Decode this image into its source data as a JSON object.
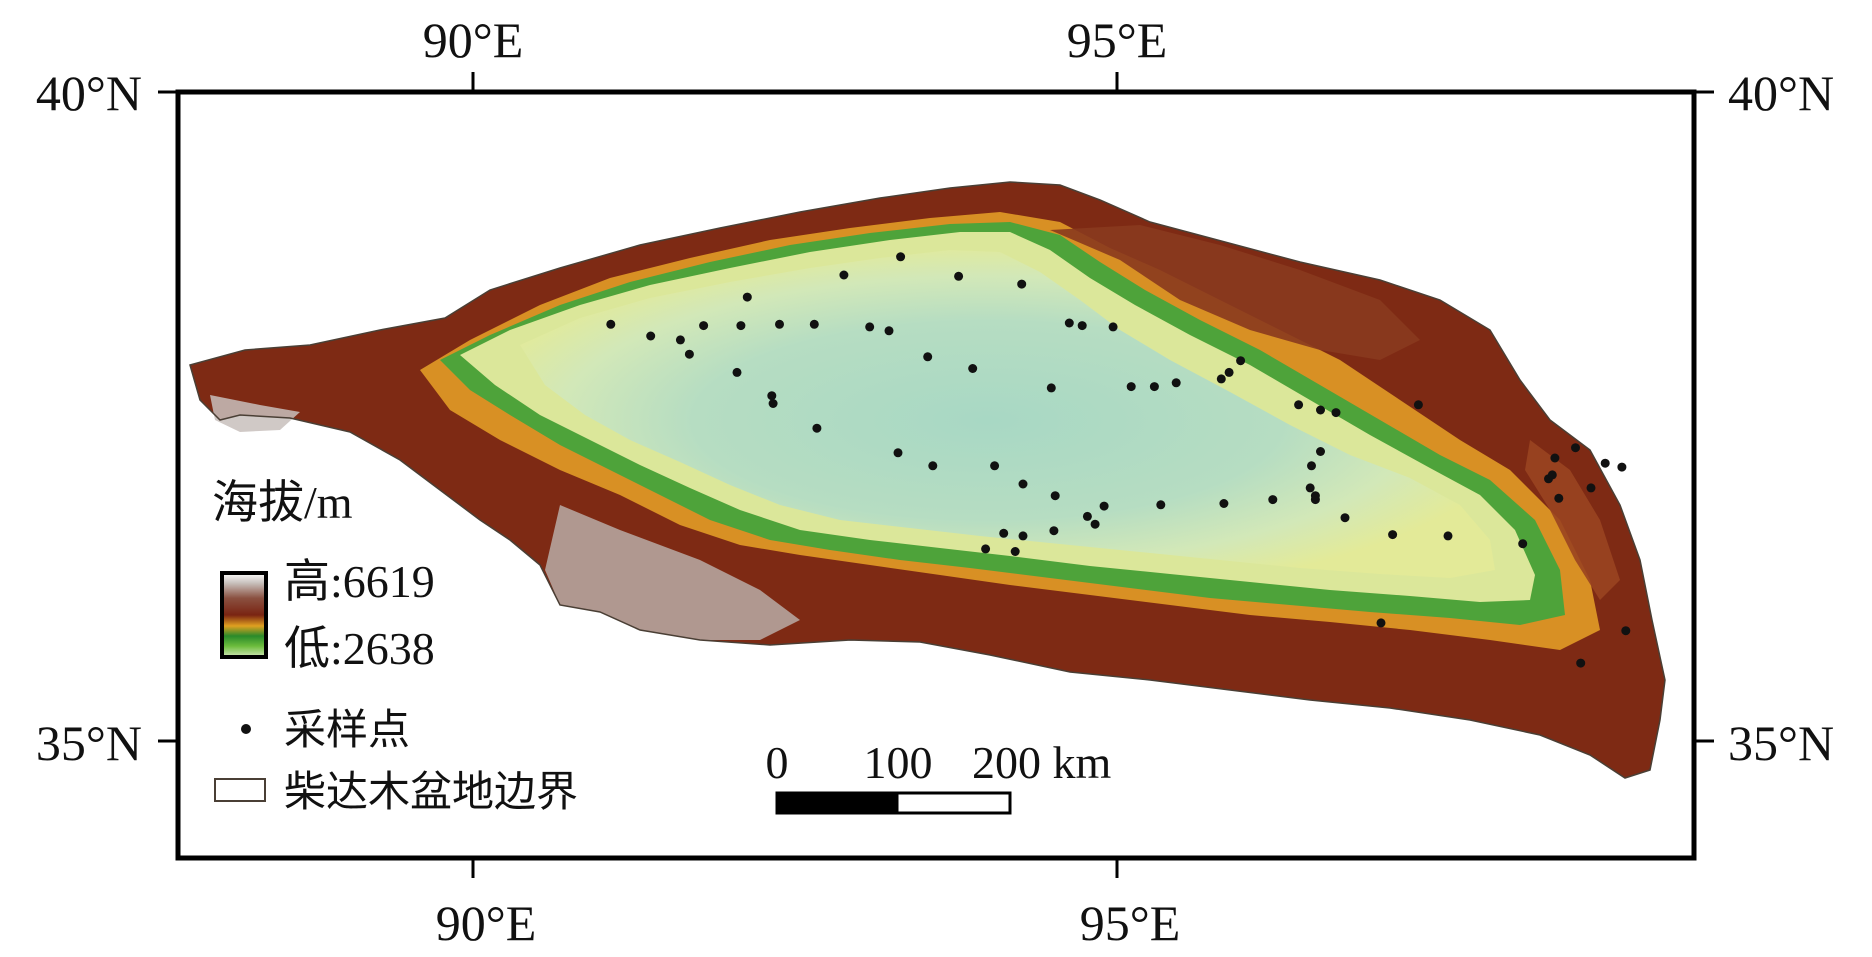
{
  "map": {
    "lon_labels": {
      "a": "90°E",
      "b": "95°E"
    },
    "lat_labels": {
      "a": "40°N",
      "b": "35°N"
    },
    "colors": {
      "frame": "#000000",
      "boundary": "#4a3f35",
      "sample_point": "#111111"
    },
    "elevation_ramp": [
      "#a8d8c4",
      "#d2e8b8",
      "#e7ea8a",
      "#6cbc3c",
      "#2a8a2a",
      "#e0a020",
      "#b4581a",
      "#7a2412",
      "#8a5040",
      "#c8c0bc",
      "#ffffff"
    ]
  },
  "legend": {
    "elevation_title": "海拔/m",
    "high_label": "高:6619",
    "low_label": "低:2638",
    "sample_label": "采样点",
    "boundary_label": "柴达木盆地边界"
  },
  "scale_bar": {
    "labels": {
      "zero": "0",
      "mid": "100",
      "end": "200 km"
    },
    "segments": [
      "black",
      "white"
    ]
  },
  "sample_points_lonlat": [
    [
      91.07,
      38.21
    ],
    [
      91.38,
      38.12
    ],
    [
      91.61,
      38.09
    ],
    [
      91.68,
      37.98
    ],
    [
      91.79,
      38.2
    ],
    [
      92.08,
      38.2
    ],
    [
      92.13,
      38.42
    ],
    [
      92.05,
      37.84
    ],
    [
      92.32,
      37.66
    ],
    [
      92.33,
      37.6
    ],
    [
      92.38,
      38.21
    ],
    [
      92.65,
      38.21
    ],
    [
      92.67,
      37.41
    ],
    [
      92.88,
      38.59
    ],
    [
      93.08,
      38.19
    ],
    [
      93.23,
      38.16
    ],
    [
      93.32,
      38.73
    ],
    [
      93.53,
      37.96
    ],
    [
      93.77,
      38.58
    ],
    [
      93.88,
      37.87
    ],
    [
      94.26,
      38.52
    ],
    [
      94.49,
      37.72
    ],
    [
      94.63,
      38.22
    ],
    [
      94.73,
      38.2
    ],
    [
      94.97,
      38.19
    ],
    [
      95.11,
      37.73
    ],
    [
      95.29,
      37.73
    ],
    [
      95.46,
      37.76
    ],
    [
      95.81,
      37.79
    ],
    [
      95.87,
      37.84
    ],
    [
      95.96,
      37.93
    ],
    [
      96.41,
      37.59
    ],
    [
      96.58,
      37.55
    ],
    [
      96.7,
      37.53
    ],
    [
      97.34,
      37.59
    ],
    [
      93.3,
      37.22
    ],
    [
      93.57,
      37.12
    ],
    [
      94.05,
      37.12
    ],
    [
      94.27,
      36.98
    ],
    [
      94.52,
      36.89
    ],
    [
      94.9,
      36.81
    ],
    [
      95.34,
      36.82
    ],
    [
      95.83,
      36.83
    ],
    [
      96.21,
      36.86
    ],
    [
      96.54,
      36.86
    ],
    [
      96.77,
      36.72
    ],
    [
      97.14,
      36.59
    ],
    [
      97.57,
      36.58
    ],
    [
      98.15,
      36.52
    ],
    [
      98.43,
      36.87
    ],
    [
      98.68,
      36.95
    ],
    [
      98.79,
      37.14
    ],
    [
      98.4,
      37.18
    ],
    [
      98.35,
      37.02
    ],
    [
      98.38,
      37.05
    ],
    [
      98.56,
      37.26
    ],
    [
      98.92,
      37.11
    ],
    [
      96.58,
      37.23
    ],
    [
      96.51,
      37.12
    ],
    [
      96.5,
      36.95
    ],
    [
      96.54,
      36.89
    ],
    [
      94.12,
      36.6
    ],
    [
      94.27,
      36.58
    ],
    [
      94.51,
      36.62
    ],
    [
      94.83,
      36.67
    ],
    [
      94.77,
      36.73
    ],
    [
      93.98,
      36.48
    ],
    [
      94.21,
      36.46
    ],
    [
      97.05,
      35.91
    ],
    [
      98.6,
      35.6
    ],
    [
      98.95,
      35.85
    ]
  ]
}
